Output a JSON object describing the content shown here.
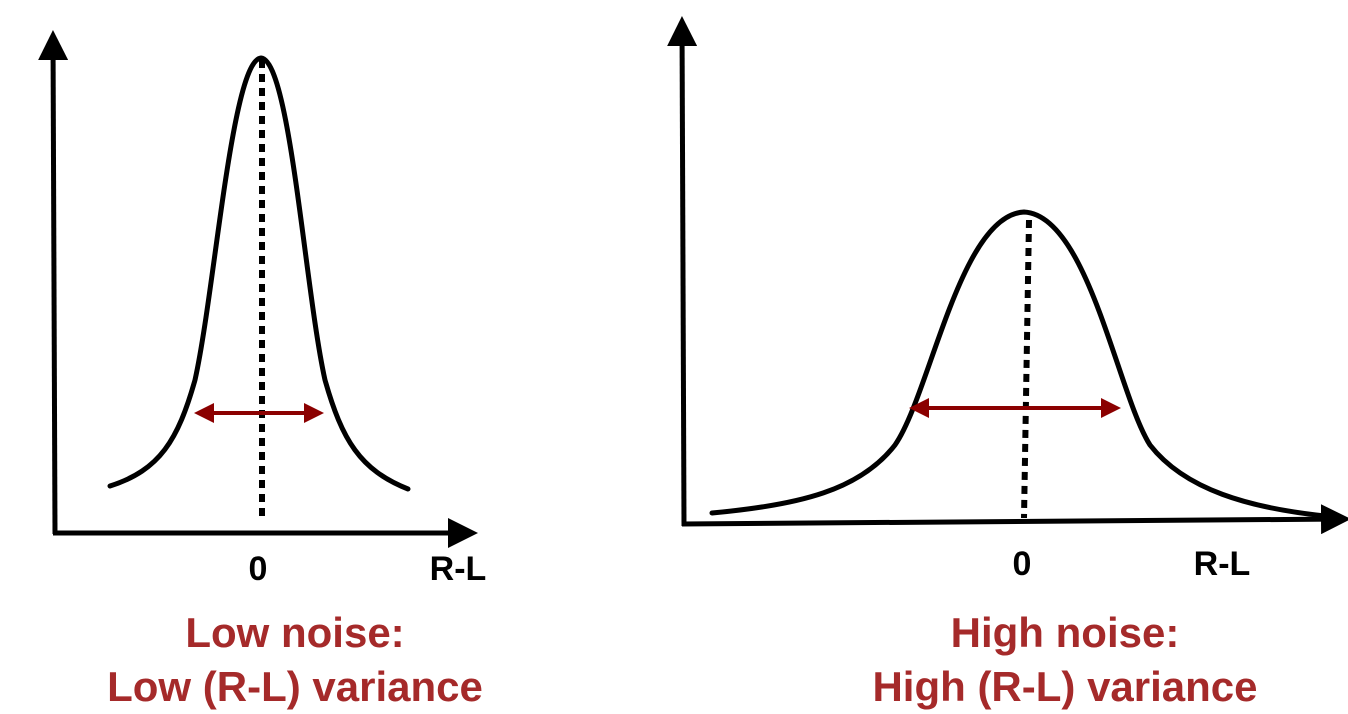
{
  "panels": [
    {
      "id": "low",
      "zero_label": "0",
      "axis_label": "R-L",
      "caption_line1": "Low noise:",
      "caption_line2": "Low (R-L) variance",
      "variance": "low"
    },
    {
      "id": "high",
      "zero_label": "0",
      "axis_label": "R-L",
      "caption_line1": "High noise:",
      "caption_line2": "High (R-L) variance",
      "variance": "high"
    }
  ],
  "colors": {
    "curve": "#000000",
    "axis": "#000000",
    "arrow": "#8b0000",
    "caption": "#a52a2a"
  }
}
